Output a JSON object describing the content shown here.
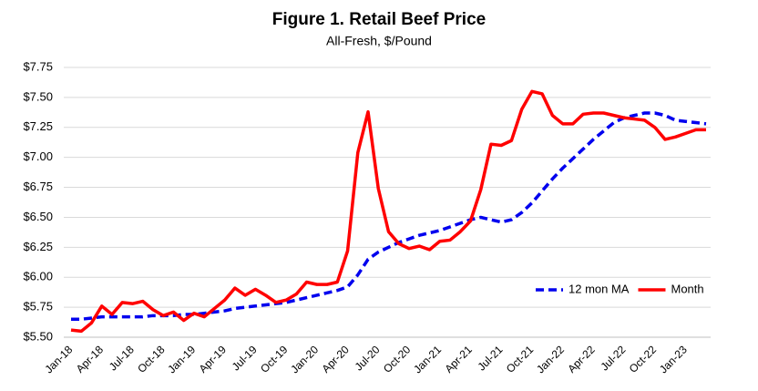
{
  "chart_data": {
    "type": "line",
    "title": "Figure 1. Retail Beef Price",
    "subtitle": "All-Fresh, $/Pound",
    "categories": [
      "Jan-18",
      null,
      null,
      "Apr-18",
      null,
      null,
      "Jul-18",
      null,
      null,
      "Oct-18",
      null,
      null,
      "Jan-19",
      null,
      null,
      "Apr-19",
      null,
      null,
      "Jul-19",
      null,
      null,
      "Oct-19",
      null,
      null,
      "Jan-20",
      null,
      null,
      "Apr-20",
      null,
      null,
      "Jul-20",
      null,
      null,
      "Oct-20",
      null,
      null,
      "Jan-21",
      null,
      null,
      "Apr-21",
      null,
      null,
      "Jul-21",
      null,
      null,
      "Oct-21",
      null,
      null,
      "Jan-22",
      null,
      null,
      "Apr-22",
      null,
      null,
      "Jul-22",
      null,
      null,
      "Oct-22",
      null,
      null,
      "Jan-23",
      null,
      null
    ],
    "series": [
      {
        "name": "12 mon MA",
        "color": "#0000ee",
        "dashed": true,
        "values": [
          5.65,
          5.65,
          5.66,
          5.67,
          5.67,
          5.67,
          5.67,
          5.67,
          5.68,
          5.68,
          5.68,
          5.69,
          5.69,
          5.7,
          5.71,
          5.72,
          5.74,
          5.75,
          5.76,
          5.77,
          5.78,
          5.79,
          5.81,
          5.83,
          5.85,
          5.87,
          5.89,
          5.92,
          6.02,
          6.15,
          6.21,
          6.25,
          6.29,
          6.32,
          6.35,
          6.37,
          6.39,
          6.42,
          6.45,
          6.48,
          6.5,
          6.48,
          6.46,
          6.48,
          6.54,
          6.62,
          6.72,
          6.82,
          6.91,
          6.99,
          7.07,
          7.15,
          7.22,
          7.29,
          7.33,
          7.35,
          7.37,
          7.37,
          7.35,
          7.31,
          7.3,
          7.29,
          7.28
        ]
      },
      {
        "name": "Month",
        "color": "#ff0000",
        "dashed": false,
        "values": [
          5.56,
          5.55,
          5.62,
          5.76,
          5.69,
          5.79,
          5.78,
          5.8,
          5.73,
          5.68,
          5.71,
          5.64,
          5.7,
          5.67,
          5.74,
          5.81,
          5.91,
          5.85,
          5.9,
          5.85,
          5.79,
          5.81,
          5.86,
          5.96,
          5.94,
          5.94,
          5.96,
          6.22,
          7.04,
          7.38,
          6.74,
          6.38,
          6.28,
          6.24,
          6.26,
          6.23,
          6.3,
          6.31,
          6.38,
          6.47,
          6.73,
          7.11,
          7.1,
          7.14,
          7.4,
          7.55,
          7.53,
          7.35,
          7.28,
          7.28,
          7.36,
          7.37,
          7.37,
          7.35,
          7.33,
          7.32,
          7.31,
          7.25,
          7.15,
          7.17,
          7.2,
          7.23,
          7.23
        ]
      }
    ],
    "ylim": [
      5.5,
      7.75
    ],
    "yticks": [
      {
        "value": 5.5,
        "label": "$5.50"
      },
      {
        "value": 5.75,
        "label": "$5.75"
      },
      {
        "value": 6.0,
        "label": "$6.00"
      },
      {
        "value": 6.25,
        "label": "$6.25"
      },
      {
        "value": 6.5,
        "label": "$6.50"
      },
      {
        "value": 6.75,
        "label": "$6.75"
      },
      {
        "value": 7.0,
        "label": "$7.00"
      },
      {
        "value": 7.25,
        "label": "$7.25"
      },
      {
        "value": 7.5,
        "label": "$7.50"
      },
      {
        "value": 7.75,
        "label": "$7.75"
      }
    ],
    "grid": true,
    "legend": "lower right"
  }
}
